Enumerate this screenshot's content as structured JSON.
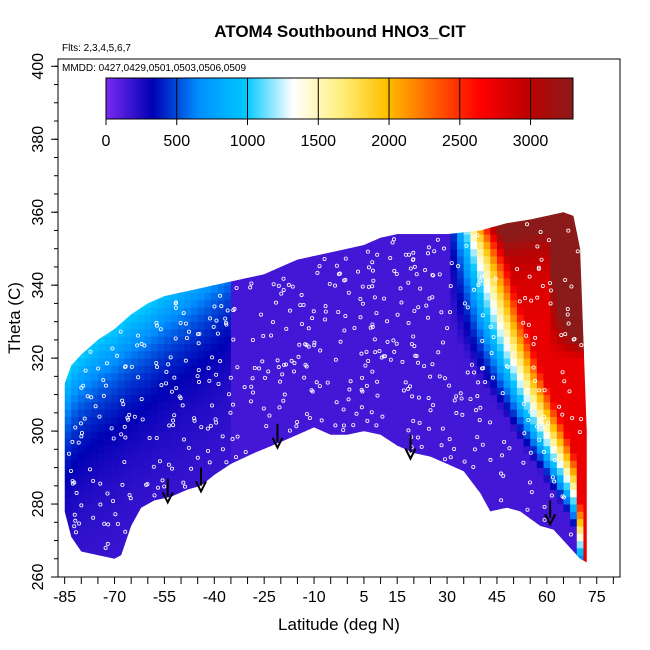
{
  "chart_data": {
    "type": "heatmap",
    "title": "ATOM4 Southbound HNO3_CIT",
    "xlabel": "Latitude (deg N)",
    "ylabel": "Theta (C)",
    "notes": [
      "Flts: 2,3,4,5,6,7",
      "MMDD: 0427,0429,0501,0503,0506,0509"
    ],
    "xlim": [
      -87,
      82
    ],
    "ylim": [
      260,
      402
    ],
    "x_ticks": [
      -85,
      -70,
      -55,
      -40,
      -25,
      -10,
      5,
      15,
      30,
      45,
      60,
      75
    ],
    "y_ticks": [
      260,
      280,
      300,
      320,
      340,
      360,
      380,
      400
    ],
    "colorbar": {
      "min": 0,
      "max": 3300,
      "ticks": [
        0,
        500,
        1000,
        1500,
        2000,
        2500,
        3000
      ],
      "colors": [
        "#7a2bf0",
        "#0000b4",
        "#0090ff",
        "#00c8ff",
        "#ffffff",
        "#fff080",
        "#ffc000",
        "#ff6000",
        "#ff0000",
        "#c00000",
        "#8b1a1a"
      ]
    },
    "bottom_boundary": [
      [
        -85,
        278
      ],
      [
        -83,
        271
      ],
      [
        -80,
        267
      ],
      [
        -75,
        266
      ],
      [
        -70,
        265
      ],
      [
        -68,
        266
      ],
      [
        -65,
        274
      ],
      [
        -62,
        279
      ],
      [
        -58,
        281
      ],
      [
        -53,
        282
      ],
      [
        -48,
        284
      ],
      [
        -44,
        285
      ],
      [
        -40,
        288
      ],
      [
        -35,
        291
      ],
      [
        -28,
        294
      ],
      [
        -20,
        297
      ],
      [
        -15,
        299
      ],
      [
        -10,
        301
      ],
      [
        -5,
        299
      ],
      [
        0,
        299
      ],
      [
        5,
        300
      ],
      [
        10,
        299
      ],
      [
        15,
        296
      ],
      [
        20,
        294
      ],
      [
        25,
        293
      ],
      [
        30,
        291
      ],
      [
        35,
        289
      ],
      [
        40,
        283
      ],
      [
        43,
        278
      ],
      [
        48,
        279
      ],
      [
        52,
        278
      ],
      [
        58,
        274
      ],
      [
        62,
        273
      ],
      [
        66,
        269
      ],
      [
        70,
        265
      ],
      [
        72,
        264
      ]
    ],
    "top_boundary": [
      [
        -85,
        313
      ],
      [
        -83,
        318
      ],
      [
        -80,
        321
      ],
      [
        -75,
        325
      ],
      [
        -70,
        328
      ],
      [
        -65,
        332
      ],
      [
        -60,
        335
      ],
      [
        -55,
        337
      ],
      [
        -50,
        338
      ],
      [
        -45,
        339
      ],
      [
        -40,
        340
      ],
      [
        -35,
        341
      ],
      [
        -30,
        342
      ],
      [
        -25,
        343
      ],
      [
        -20,
        345
      ],
      [
        -15,
        347
      ],
      [
        -10,
        348
      ],
      [
        -5,
        349
      ],
      [
        0,
        350
      ],
      [
        5,
        351
      ],
      [
        10,
        353
      ],
      [
        15,
        354
      ],
      [
        20,
        354
      ],
      [
        30,
        354
      ],
      [
        40,
        355
      ],
      [
        48,
        357
      ],
      [
        55,
        358
      ],
      [
        60,
        359
      ],
      [
        65,
        360
      ],
      [
        68,
        359
      ],
      [
        70,
        350
      ],
      [
        72,
        300
      ]
    ],
    "arrows": [
      [
        -54,
        287
      ],
      [
        -44,
        290
      ],
      [
        -21,
        302
      ],
      [
        19,
        299
      ],
      [
        61,
        281
      ]
    ]
  }
}
